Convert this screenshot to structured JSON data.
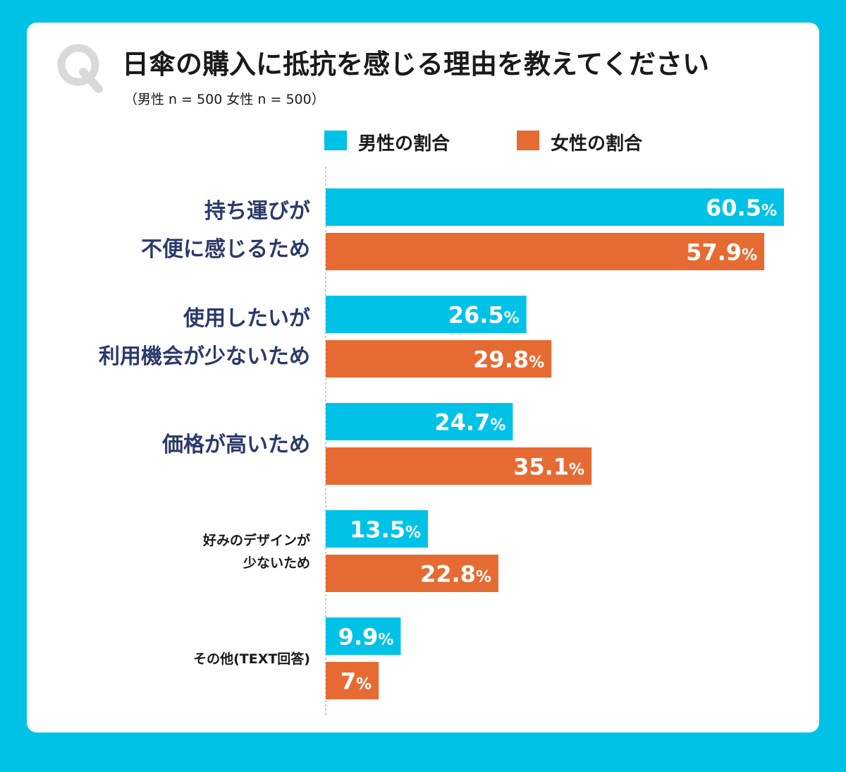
{
  "header": {
    "q_letter": "Q",
    "title": "日傘の購入に抵抗を感じる理由を教えてください",
    "subtitle": "（男性 n = 500 女性 n = 500）"
  },
  "legend": {
    "male": "男性の割合",
    "female": "女性の割合"
  },
  "colors": {
    "background": "#00c2e6",
    "male": "#00c2e6",
    "female": "#e66b33",
    "category_primary": "#2c3a6a",
    "category_secondary": "#1a1a1a",
    "q_mark": "#d9d9d9"
  },
  "chart_data": {
    "type": "bar",
    "orientation": "horizontal",
    "title": "日傘の購入に抵抗を感じる理由を教えてください",
    "subtitle": "（男性 n = 500 女性 n = 500）",
    "value_suffix": "%",
    "categories": [
      [
        "持ち運びが",
        "不便に感じるため"
      ],
      [
        "使用したいが",
        "利用機会が少ないため"
      ],
      [
        "価格が高いため"
      ],
      [
        "好みのデザインが",
        "少ないため"
      ],
      [
        "その他(TEXT回答)"
      ]
    ],
    "series": [
      {
        "name": "男性の割合",
        "values": [
          60.5,
          26.5,
          24.7,
          13.5,
          9.9
        ]
      },
      {
        "name": "女性の割合",
        "values": [
          57.9,
          29.8,
          35.1,
          22.8,
          7
        ]
      }
    ],
    "xlim": [
      0,
      60.5
    ],
    "legend": "top"
  }
}
